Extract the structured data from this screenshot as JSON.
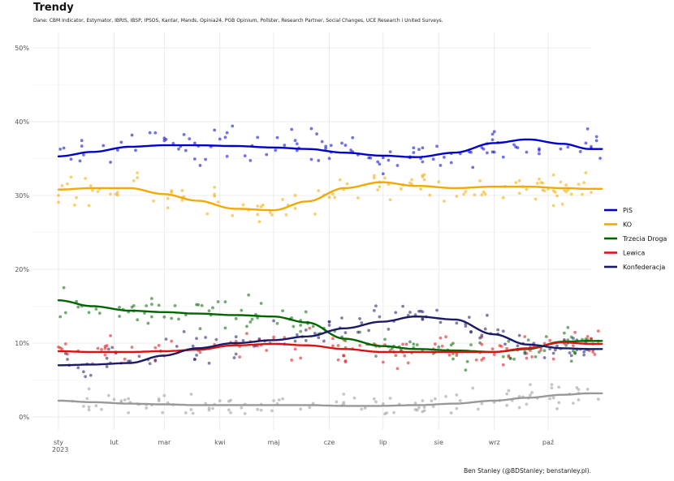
{
  "chart_data": {
    "type": "scatter",
    "title": "Trendy",
    "subtitle": "Dane: CBM Indicator, Estymator, IBRIS, IBSP, IPSOS, Kantar, Mands, Opinia24, PGB Opinium, Pollster, Research Partner, Social Changes, UCE Research i United Surveys.",
    "caption": "Ben Stanley (@BDStanley; benstanley.pl).",
    "xlabel": "",
    "ylabel": "",
    "x_range": [
      "2023-01-01",
      "2023-10-31"
    ],
    "ylim": [
      0,
      50
    ],
    "y_ticks": [
      0,
      10,
      20,
      30,
      40,
      50
    ],
    "y_tick_labels": [
      "0%",
      "10%",
      "20%",
      "30%",
      "40%",
      "50%"
    ],
    "x_ticks": [
      "2023-01-01",
      "2023-02-01",
      "2023-03-01",
      "2023-04-01",
      "2023-05-01",
      "2023-06-01",
      "2023-07-01",
      "2023-08-01",
      "2023-09-01",
      "2023-10-01"
    ],
    "x_tick_labels": [
      "sty\n2023",
      "lut",
      "mar",
      "kwi",
      "maj",
      "cze",
      "lip",
      "sie",
      "wrz",
      "paź"
    ],
    "grid": true,
    "legend_position": "right",
    "series": [
      {
        "name": "PiS",
        "color": "#0000cc",
        "x": [
          "2023-01-01",
          "2023-01-20",
          "2023-02-10",
          "2023-03-01",
          "2023-03-20",
          "2023-04-10",
          "2023-05-01",
          "2023-05-20",
          "2023-06-10",
          "2023-07-01",
          "2023-07-20",
          "2023-08-10",
          "2023-09-01",
          "2023-09-20",
          "2023-10-10",
          "2023-10-25"
        ],
        "y": [
          35.3,
          35.9,
          36.6,
          36.8,
          36.8,
          36.7,
          36.5,
          36.3,
          35.8,
          35.4,
          35.2,
          35.8,
          37.1,
          37.6,
          37.0,
          36.3
        ]
      },
      {
        "name": "KO",
        "color": "#f2a900",
        "x": [
          "2023-01-01",
          "2023-01-20",
          "2023-02-10",
          "2023-03-01",
          "2023-03-20",
          "2023-04-10",
          "2023-05-01",
          "2023-05-20",
          "2023-06-10",
          "2023-07-01",
          "2023-07-20",
          "2023-08-10",
          "2023-09-01",
          "2023-09-20",
          "2023-10-10",
          "2023-10-25"
        ],
        "y": [
          30.8,
          31.0,
          31.0,
          30.2,
          29.3,
          28.2,
          28.0,
          29.2,
          31.0,
          31.8,
          31.3,
          31.0,
          31.2,
          31.2,
          31.0,
          30.9
        ]
      },
      {
        "name": "Trzecia Droga",
        "color": "#006600",
        "x": [
          "2023-01-01",
          "2023-01-20",
          "2023-02-10",
          "2023-03-01",
          "2023-03-20",
          "2023-04-10",
          "2023-05-01",
          "2023-05-20",
          "2023-06-10",
          "2023-07-01",
          "2023-07-20",
          "2023-08-10",
          "2023-09-01",
          "2023-09-20",
          "2023-10-10",
          "2023-10-25"
        ],
        "y": [
          15.8,
          15.0,
          14.4,
          14.2,
          14.0,
          13.8,
          13.6,
          12.8,
          10.6,
          9.6,
          9.2,
          9.0,
          8.8,
          9.2,
          10.2,
          10.3
        ]
      },
      {
        "name": "Lewica",
        "color": "#dd1111",
        "x": [
          "2023-01-01",
          "2023-01-20",
          "2023-02-10",
          "2023-03-01",
          "2023-03-20",
          "2023-04-10",
          "2023-05-01",
          "2023-05-20",
          "2023-06-10",
          "2023-07-01",
          "2023-07-20",
          "2023-08-10",
          "2023-09-01",
          "2023-09-20",
          "2023-10-10",
          "2023-10-25"
        ],
        "y": [
          8.9,
          8.8,
          8.8,
          8.9,
          9.1,
          9.7,
          9.9,
          9.7,
          9.2,
          8.8,
          8.8,
          8.8,
          8.8,
          9.3,
          10.1,
          9.9
        ]
      },
      {
        "name": "Konfederacja",
        "color": "#1a1a66",
        "x": [
          "2023-01-01",
          "2023-01-20",
          "2023-02-10",
          "2023-03-01",
          "2023-03-20",
          "2023-04-10",
          "2023-05-01",
          "2023-05-20",
          "2023-06-10",
          "2023-07-01",
          "2023-07-20",
          "2023-08-10",
          "2023-09-01",
          "2023-09-20",
          "2023-10-10",
          "2023-10-25"
        ],
        "y": [
          7.0,
          7.1,
          7.3,
          8.3,
          9.3,
          10.0,
          10.4,
          10.9,
          12.0,
          12.9,
          13.6,
          13.2,
          11.2,
          9.8,
          9.3,
          9.2
        ]
      },
      {
        "name": "",
        "color": "#999999",
        "show_in_legend": false,
        "x": [
          "2023-01-01",
          "2023-01-20",
          "2023-02-10",
          "2023-03-01",
          "2023-03-20",
          "2023-04-10",
          "2023-05-01",
          "2023-05-20",
          "2023-06-10",
          "2023-07-01",
          "2023-07-20",
          "2023-08-10",
          "2023-09-01",
          "2023-09-20",
          "2023-10-10",
          "2023-10-25"
        ],
        "y": [
          2.2,
          2.0,
          1.8,
          1.7,
          1.6,
          1.6,
          1.6,
          1.6,
          1.5,
          1.5,
          1.6,
          1.8,
          2.2,
          2.6,
          3.0,
          3.2
        ]
      }
    ]
  }
}
